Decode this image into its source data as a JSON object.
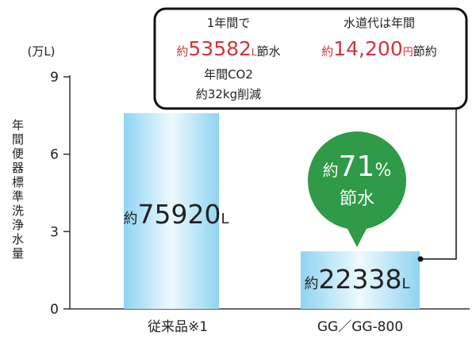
{
  "chart_data": {
    "type": "bar",
    "y_unit": "(万L)",
    "y_label": "年間便器標準洗浄水量",
    "categories": [
      "従来品※1",
      "GG／GG-800"
    ],
    "values": [
      7.592,
      2.2338
    ],
    "value_labels": [
      "約75920L",
      "約22338L"
    ],
    "ylim": [
      0,
      9
    ],
    "yticks": [
      0,
      3,
      6,
      9
    ],
    "color": "#8fd4f1",
    "annotations": {
      "box": {
        "left": [
          "1年間で",
          [
            "約",
            "53582",
            "L",
            "節水"
          ],
          "年間CO2",
          "約32kg削減"
        ],
        "right": [
          "水道代は年間",
          [
            "約",
            "14,200",
            "円",
            "節約"
          ]
        ]
      },
      "bubble": {
        "line1": [
          "約",
          "71",
          "%"
        ],
        "line2": "節水",
        "color": "#2f9a47"
      }
    }
  }
}
